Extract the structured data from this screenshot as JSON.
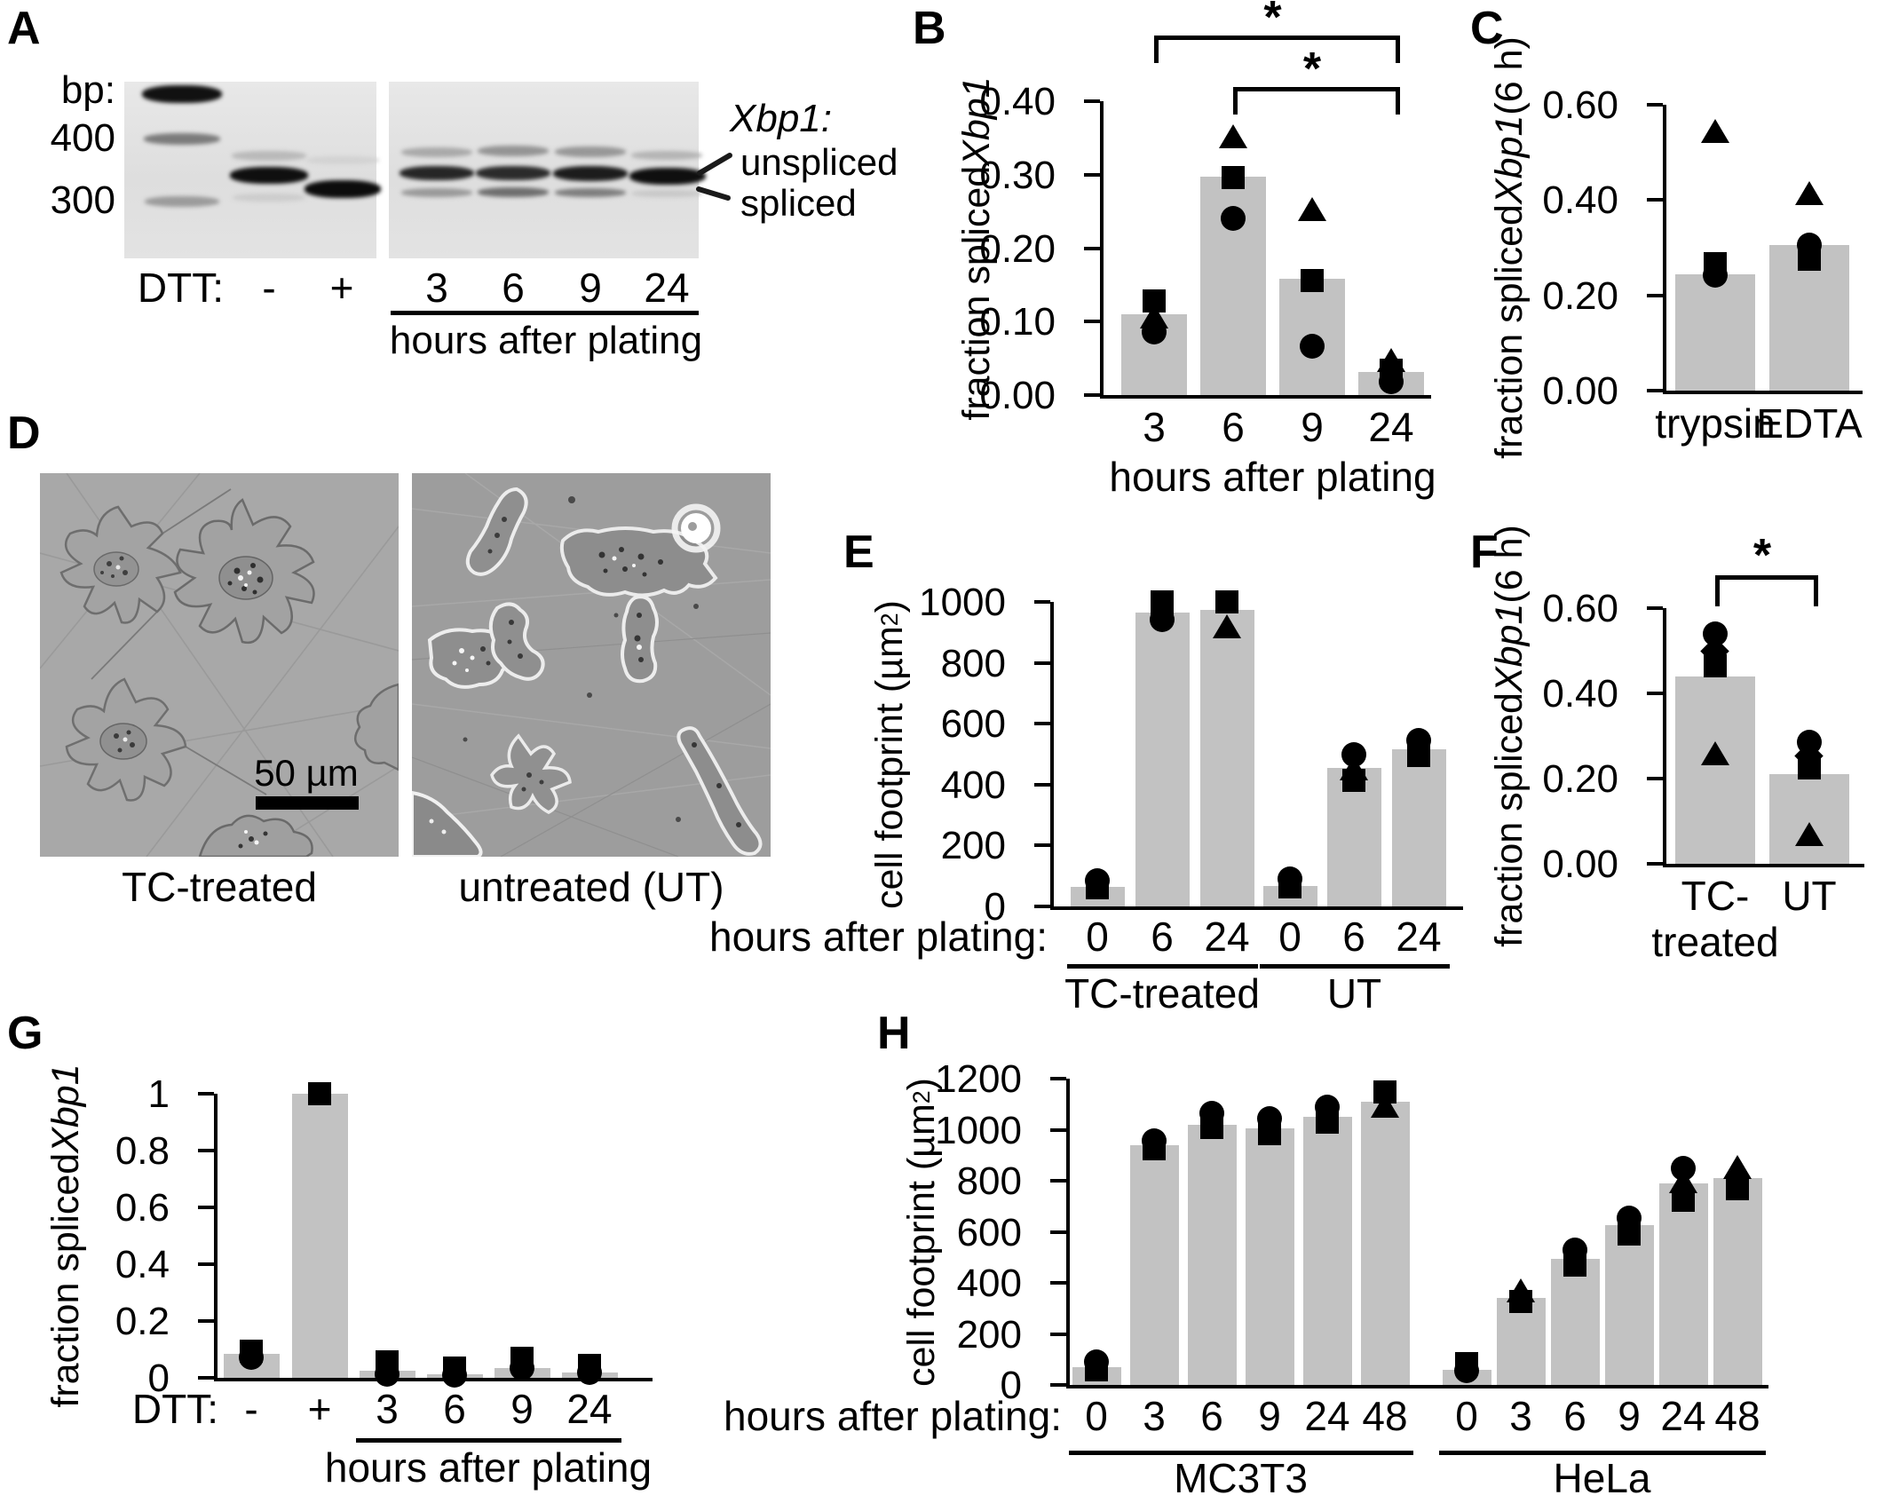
{
  "colors": {
    "bar_fill": "#c2c2c2",
    "marker": "#000000",
    "axis": "#000000",
    "gel_bg": "#e2e2e2",
    "micro_bg_tc": "#a8a8a8",
    "micro_bg_ut": "#9d9d9d"
  },
  "panels": {
    "a": {
      "letter": "A",
      "bp_header": "bp:",
      "bp_marks": [
        "400",
        "300"
      ],
      "gene": "Xbp1:",
      "band_labels": [
        "unspliced",
        "spliced"
      ],
      "row_label": "DTT:",
      "dtt_values": [
        "-",
        "+"
      ],
      "time_values": [
        "3",
        "6",
        "9",
        "24"
      ],
      "time_axis_label": "hours after plating"
    },
    "b": {
      "letter": "B"
    },
    "c": {
      "letter": "C"
    },
    "d": {
      "letter": "D",
      "scale_bar": "50 µm",
      "captions": [
        "TC-treated",
        "untreated (UT)"
      ]
    },
    "e": {
      "letter": "E"
    },
    "f": {
      "letter": "F"
    },
    "g": {
      "letter": "G"
    },
    "h": {
      "letter": "H"
    }
  },
  "chart_data": [
    {
      "id": "B",
      "type": "bar",
      "ylabel": "fraction spliced Xbp1",
      "ylabel_rich": [
        {
          "text": "fraction spliced "
        },
        {
          "text": "Xbp1",
          "italic": true
        }
      ],
      "ylim": [
        0,
        0.4
      ],
      "yticks": [
        0,
        0.1,
        0.2,
        0.3,
        0.4
      ],
      "ytick_labels": [
        "0.00",
        "0.10",
        "0.20",
        "0.30",
        "0.40"
      ],
      "categories": [
        "3",
        "6",
        "9",
        "24"
      ],
      "values": [
        0.11,
        0.297,
        0.158,
        0.032
      ],
      "xlabel": "hours after plating",
      "grid": false,
      "points": [
        [
          {
            "marker": "square",
            "value": 0.128
          },
          {
            "marker": "triangle",
            "value": 0.106
          },
          {
            "marker": "circle",
            "value": 0.086
          }
        ],
        [
          {
            "marker": "triangle",
            "value": 0.352
          },
          {
            "marker": "square",
            "value": 0.296
          },
          {
            "marker": "circle",
            "value": 0.241
          }
        ],
        [
          {
            "marker": "triangle",
            "value": 0.252
          },
          {
            "marker": "square",
            "value": 0.156
          },
          {
            "marker": "circle",
            "value": 0.066
          }
        ],
        [
          {
            "marker": "triangle",
            "value": 0.047
          },
          {
            "marker": "square",
            "value": 0.034
          },
          {
            "marker": "circle",
            "value": 0.018
          }
        ]
      ],
      "significance": [
        {
          "from": 0,
          "to": 3,
          "label": "*"
        },
        {
          "from": 1,
          "to": 3,
          "label": "*"
        }
      ]
    },
    {
      "id": "C",
      "type": "bar",
      "ylabel": "fraction spliced Xbp1 (6 h)",
      "ylabel_rich": [
        {
          "text": "fraction spliced "
        },
        {
          "text": "Xbp1",
          "italic": true
        },
        {
          "text": " (6 h)"
        }
      ],
      "ylim": [
        0,
        0.6
      ],
      "yticks": [
        0,
        0.2,
        0.4,
        0.6
      ],
      "ytick_labels": [
        "0.00",
        "0.20",
        "0.40",
        "0.60"
      ],
      "categories": [
        "trypsin",
        "EDTA"
      ],
      "values": [
        0.245,
        0.305
      ],
      "grid": false,
      "points": [
        [
          {
            "marker": "triangle",
            "value": 0.545
          },
          {
            "marker": "square",
            "value": 0.266
          },
          {
            "marker": "circle",
            "value": 0.243
          }
        ],
        [
          {
            "marker": "triangle",
            "value": 0.413
          },
          {
            "marker": "circle",
            "value": 0.306
          },
          {
            "marker": "square",
            "value": 0.276
          }
        ]
      ]
    },
    {
      "id": "E",
      "type": "bar",
      "ylabel": "cell footprint (µm²)",
      "ylabel_rich": [
        {
          "text": "cell footprint (µm"
        },
        {
          "text": "2",
          "sup": true
        },
        {
          "text": ")"
        }
      ],
      "ylim": [
        0,
        1000
      ],
      "yticks": [
        0,
        200,
        400,
        600,
        800,
        1000
      ],
      "ytick_labels": [
        "0",
        "200",
        "400",
        "600",
        "800",
        "1000"
      ],
      "categories": [
        "0",
        "6",
        "24",
        "0",
        "6",
        "24"
      ],
      "values": [
        65,
        965,
        975,
        68,
        455,
        515
      ],
      "x_prefix": "hours after plating:",
      "groups": [
        {
          "label": "TC-treated",
          "from": 0,
          "to": 2
        },
        {
          "label": "UT",
          "from": 3,
          "to": 5
        }
      ],
      "grid": false,
      "points": [
        [
          {
            "marker": "circle",
            "value": 85
          },
          {
            "marker": "square",
            "value": 60
          }
        ],
        [
          {
            "marker": "square",
            "value": 1000
          },
          {
            "marker": "square",
            "value": 972
          },
          {
            "marker": "circle",
            "value": 942
          }
        ],
        [
          {
            "marker": "square",
            "value": 1000
          },
          {
            "marker": "triangle",
            "value": 918
          }
        ],
        [
          {
            "marker": "circle",
            "value": 90
          },
          {
            "marker": "square",
            "value": 63
          }
        ],
        [
          {
            "marker": "circle",
            "value": 500
          },
          {
            "marker": "triangle",
            "value": 452
          },
          {
            "marker": "square",
            "value": 415
          }
        ],
        [
          {
            "marker": "circle",
            "value": 545
          },
          {
            "marker": "square",
            "value": 495
          }
        ]
      ]
    },
    {
      "id": "F",
      "type": "bar",
      "ylabel": "fraction spliced Xbp1 (6 h)",
      "ylabel_rich": [
        {
          "text": "fraction spliced "
        },
        {
          "text": "Xbp1",
          "italic": true
        },
        {
          "text": " (6 h)"
        }
      ],
      "ylim": [
        0,
        0.6
      ],
      "yticks": [
        0,
        0.2,
        0.4,
        0.6
      ],
      "ytick_labels": [
        "0.00",
        "0.20",
        "0.40",
        "0.60"
      ],
      "categories": [
        "TC-treated",
        "UT"
      ],
      "category_lines": [
        [
          "TC-",
          "treated"
        ],
        [
          "UT"
        ]
      ],
      "values": [
        0.44,
        0.21
      ],
      "grid": false,
      "points": [
        [
          {
            "marker": "circle",
            "value": 0.54
          },
          {
            "marker": "diamond",
            "value": 0.498
          },
          {
            "marker": "square",
            "value": 0.464
          },
          {
            "marker": "triangle",
            "value": 0.258
          }
        ],
        [
          {
            "marker": "circle",
            "value": 0.285
          },
          {
            "marker": "diamond",
            "value": 0.252
          },
          {
            "marker": "square",
            "value": 0.224
          },
          {
            "marker": "triangle",
            "value": 0.068
          }
        ]
      ],
      "significance": [
        {
          "from": 0,
          "to": 1,
          "label": "*"
        }
      ]
    },
    {
      "id": "G",
      "type": "bar",
      "ylabel": "fraction spliced Xbp1",
      "ylabel_rich": [
        {
          "text": "fraction spliced "
        },
        {
          "text": "Xbp1",
          "italic": true
        }
      ],
      "ylim": [
        0,
        1
      ],
      "yticks": [
        0,
        0.2,
        0.4,
        0.6,
        0.8,
        1
      ],
      "ytick_labels": [
        "0",
        "0.2",
        "0.4",
        "0.6",
        "0.8",
        "1"
      ],
      "categories": [
        "-",
        "+",
        "3",
        "6",
        "9",
        "24"
      ],
      "values": [
        0.085,
        1.0,
        0.025,
        0.012,
        0.035,
        0.02
      ],
      "x_prefix": "DTT:",
      "groups": [
        {
          "label": "hours after plating",
          "from": 2,
          "to": 5
        }
      ],
      "grid": false,
      "points": [
        [
          {
            "marker": "square",
            "value": 0.095
          },
          {
            "marker": "circle",
            "value": 0.072
          }
        ],
        [
          {
            "marker": "square",
            "value": 1.0
          }
        ],
        [
          {
            "marker": "square",
            "value": 0.055
          },
          {
            "marker": "circle",
            "value": 0.012
          }
        ],
        [
          {
            "marker": "square",
            "value": 0.035
          },
          {
            "marker": "circle",
            "value": 0.008
          }
        ],
        [
          {
            "marker": "square",
            "value": 0.07
          },
          {
            "marker": "circle",
            "value": 0.035
          }
        ],
        [
          {
            "marker": "square",
            "value": 0.045
          },
          {
            "marker": "circle",
            "value": 0.02
          }
        ]
      ]
    },
    {
      "id": "H",
      "type": "bar",
      "ylabel": "cell footprint (µm²)",
      "ylabel_rich": [
        {
          "text": "cell footprint (µm"
        },
        {
          "text": "2",
          "sup": true
        },
        {
          "text": ")"
        }
      ],
      "ylim": [
        0,
        1200
      ],
      "yticks": [
        0,
        200,
        400,
        600,
        800,
        1000,
        1200
      ],
      "ytick_labels": [
        "0",
        "200",
        "400",
        "600",
        "800",
        "1000",
        "1200"
      ],
      "categories": [
        "0",
        "3",
        "6",
        "9",
        "24",
        "48",
        "0",
        "3",
        "6",
        "9",
        "24",
        "48"
      ],
      "values": [
        70,
        940,
        1020,
        1005,
        1050,
        1110,
        60,
        340,
        495,
        625,
        790,
        810
      ],
      "x_prefix": "hours after plating:",
      "groups": [
        {
          "label": "MC3T3",
          "from": 0,
          "to": 5
        },
        {
          "label": "HeLa",
          "from": 6,
          "to": 11
        }
      ],
      "grid": false,
      "points": [
        [
          {
            "marker": "circle",
            "value": 90
          },
          {
            "marker": "square",
            "value": 60
          }
        ],
        [
          {
            "marker": "circle",
            "value": 958
          },
          {
            "marker": "square",
            "value": 925
          }
        ],
        [
          {
            "marker": "circle",
            "value": 1063
          },
          {
            "marker": "square",
            "value": 1008
          }
        ],
        [
          {
            "marker": "circle",
            "value": 1042
          },
          {
            "marker": "square",
            "value": 985
          }
        ],
        [
          {
            "marker": "circle",
            "value": 1090
          },
          {
            "marker": "square",
            "value": 1030
          }
        ],
        [
          {
            "marker": "square",
            "value": 1148
          },
          {
            "marker": "triangle",
            "value": 1093
          }
        ],
        [
          {
            "marker": "square",
            "value": 83
          },
          {
            "marker": "circle",
            "value": 55
          }
        ],
        [
          {
            "marker": "triangle",
            "value": 368
          },
          {
            "marker": "square",
            "value": 328
          }
        ],
        [
          {
            "marker": "circle",
            "value": 528
          },
          {
            "marker": "square",
            "value": 468
          }
        ],
        [
          {
            "marker": "circle",
            "value": 655
          },
          {
            "marker": "square",
            "value": 590
          }
        ],
        [
          {
            "marker": "circle",
            "value": 848
          },
          {
            "marker": "triangle",
            "value": 798
          },
          {
            "marker": "square",
            "value": 722
          }
        ],
        [
          {
            "marker": "triangle",
            "value": 852
          },
          {
            "marker": "square",
            "value": 768
          }
        ]
      ]
    }
  ]
}
